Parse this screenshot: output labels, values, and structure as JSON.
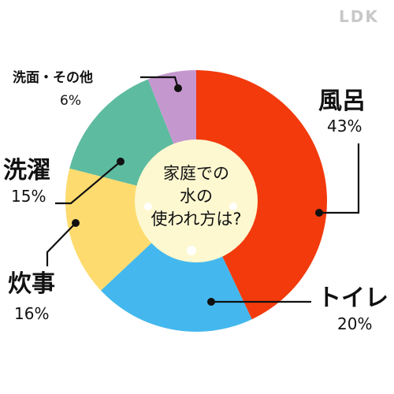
{
  "brand": "LDK",
  "chart_data": {
    "type": "pie",
    "donut": true,
    "center_title_lines": [
      "家庭での",
      "水の",
      "使われ方は?"
    ],
    "categories": [
      "風呂",
      "トイレ",
      "炊事",
      "洗濯",
      "洗面・その他"
    ],
    "values": [
      43,
      20,
      16,
      15,
      6
    ],
    "value_labels": [
      "43%",
      "20%",
      "16%",
      "15%",
      "6%"
    ],
    "unit": "%",
    "colors": [
      "#f23a0c",
      "#44b8ee",
      "#fddb6f",
      "#5dbba0",
      "#c597cf"
    ],
    "center_color": "#fdf8d0"
  }
}
